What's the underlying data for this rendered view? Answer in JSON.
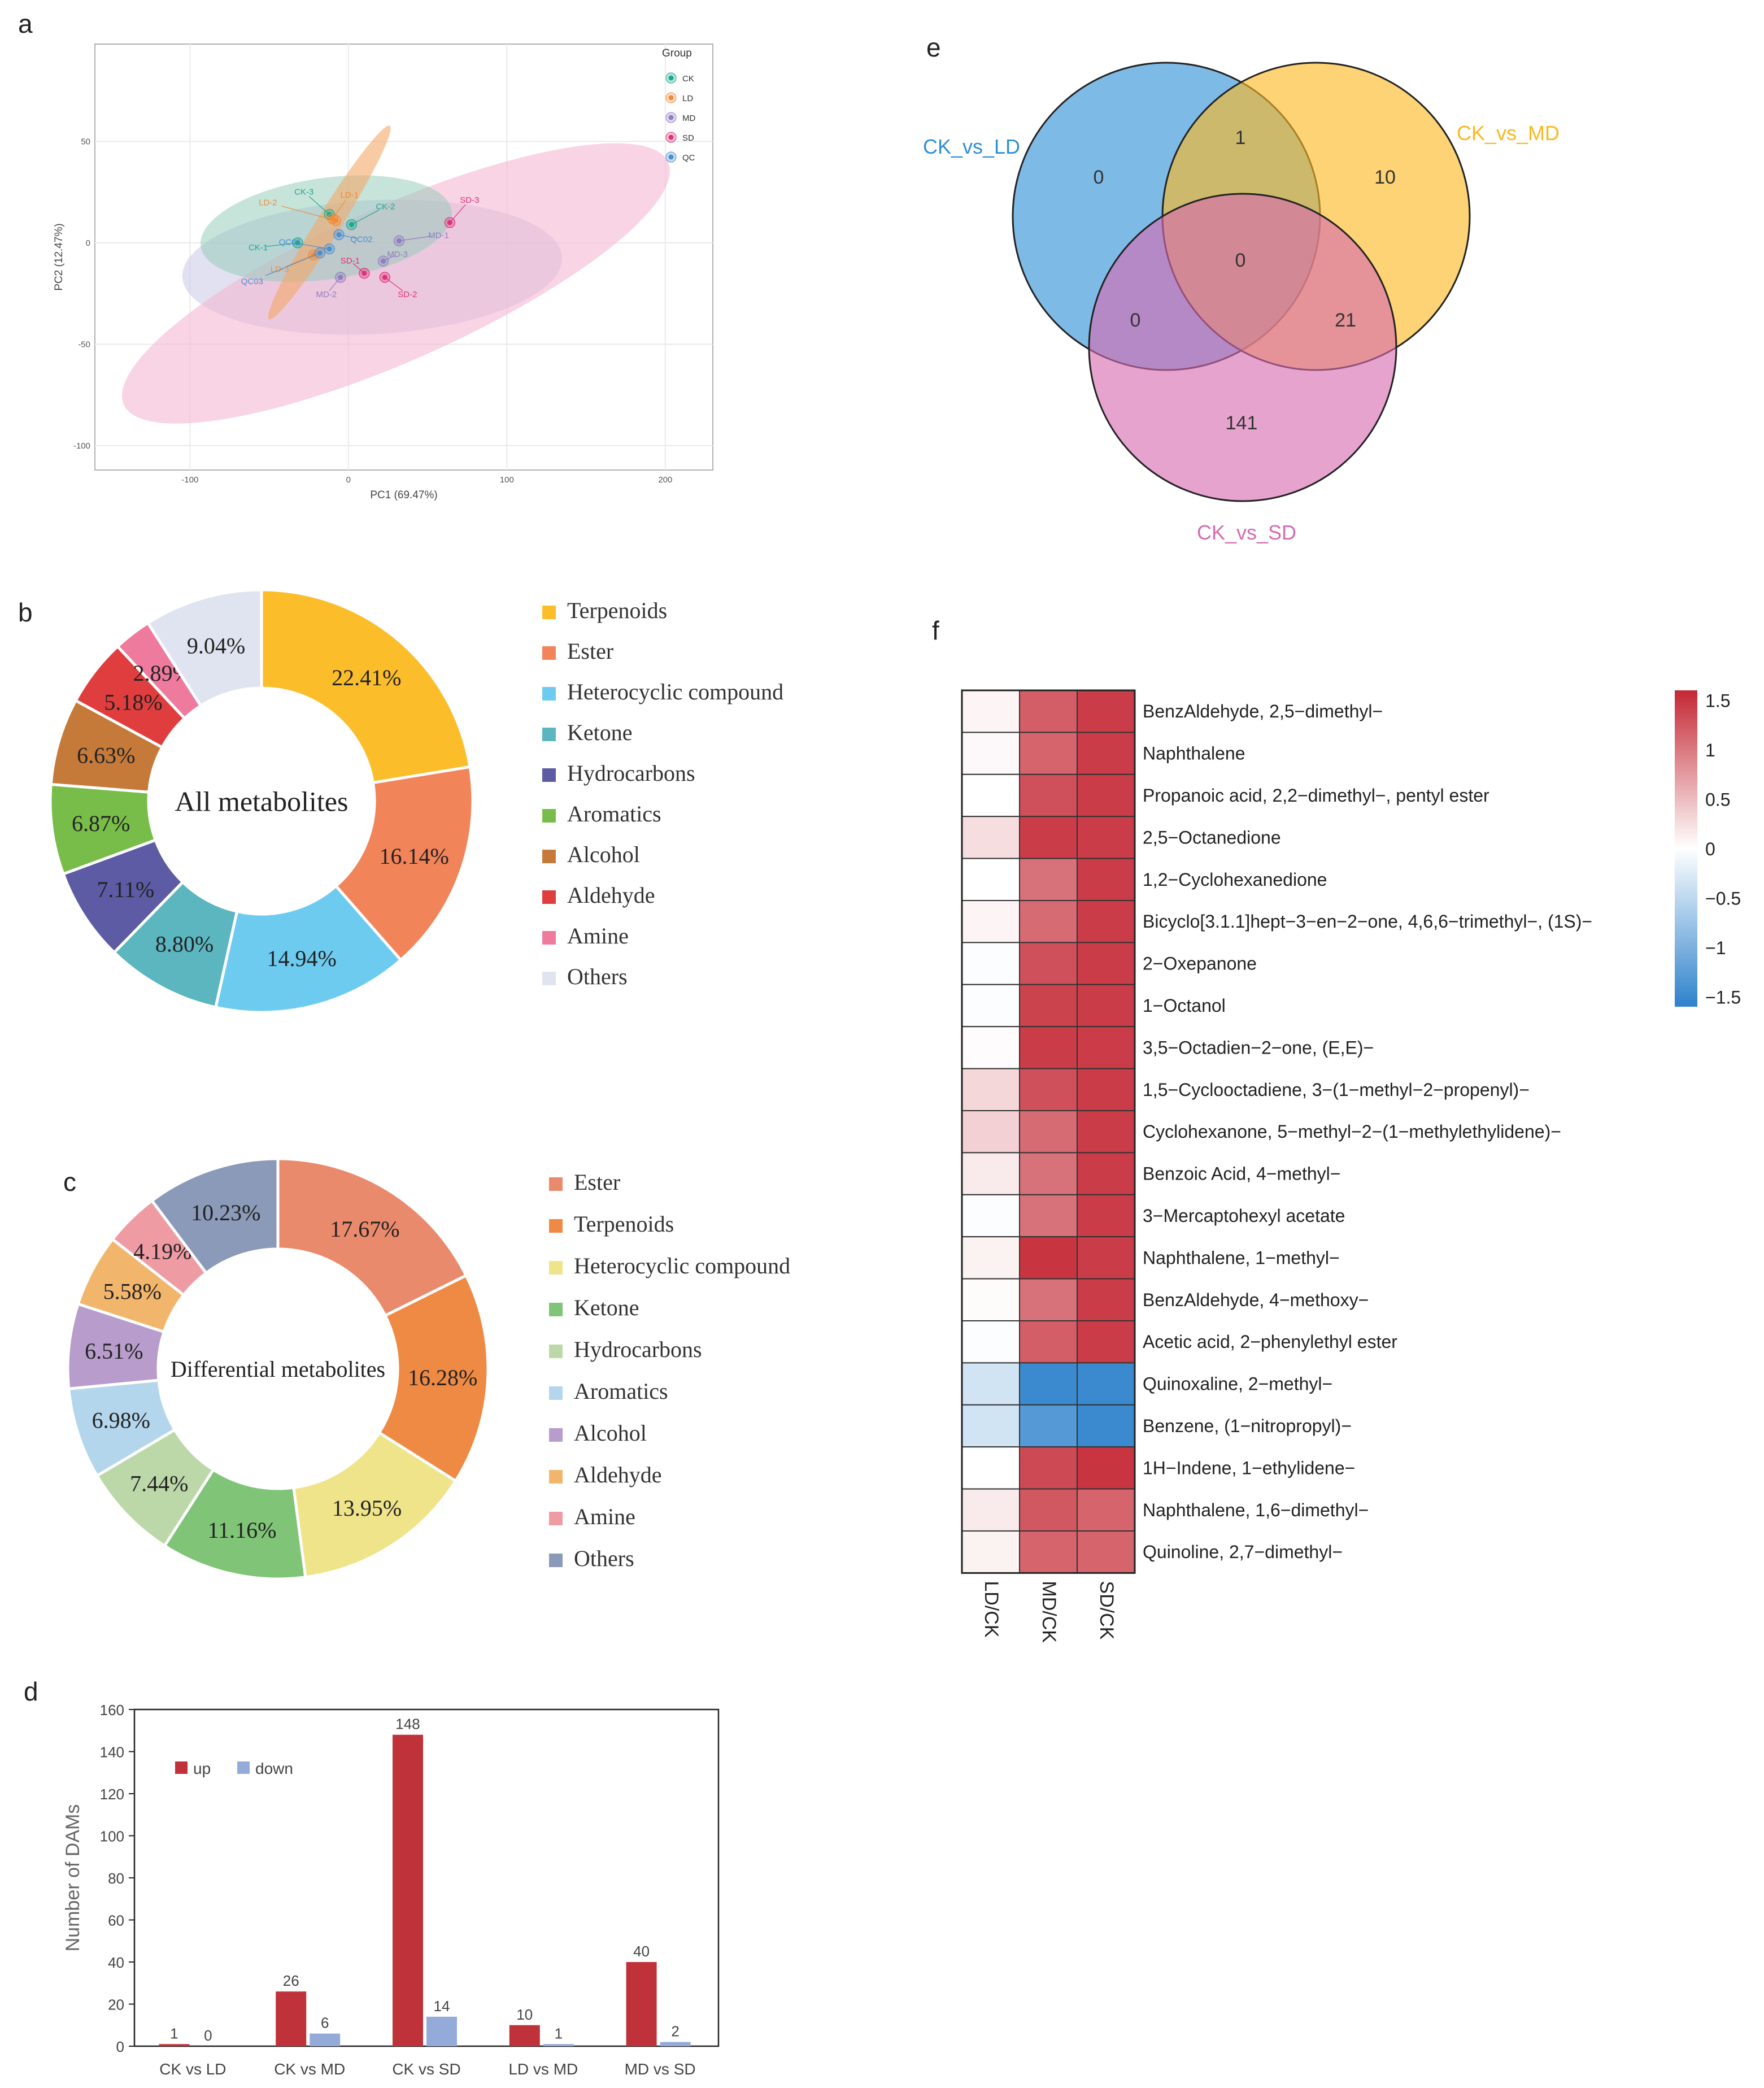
{
  "panels": {
    "a": "a",
    "b": "b",
    "c": "c",
    "d": "d",
    "e": "e",
    "f": "f"
  },
  "chart_data": [
    {
      "id": "a",
      "type": "scatter",
      "title": "",
      "xlabel": "PC1 (69.47%)",
      "ylabel": "PC2 (12.47%)",
      "xlim": [
        -160,
        230
      ],
      "ylim": [
        -112,
        98
      ],
      "xticks": [
        -100,
        0,
        100,
        200
      ],
      "yticks": [
        -100,
        -50,
        0,
        50
      ],
      "legend_title": "Group",
      "groups": [
        {
          "name": "CK",
          "color": "#1aa98f"
        },
        {
          "name": "LD",
          "color": "#f08a3a"
        },
        {
          "name": "MD",
          "color": "#8f7dc0"
        },
        {
          "name": "SD",
          "color": "#e0307a"
        },
        {
          "name": "QC",
          "color": "#4a8fd0"
        }
      ],
      "points": [
        {
          "label": "CK-1",
          "group": "CK",
          "x": -32,
          "y": 0
        },
        {
          "label": "CK-3",
          "group": "CK",
          "x": -12,
          "y": 14
        },
        {
          "label": "CK-2",
          "group": "CK",
          "x": 2,
          "y": 9
        },
        {
          "label": "LD-2",
          "group": "LD",
          "x": -8,
          "y": 11
        },
        {
          "label": "LD-1",
          "group": "LD",
          "x": -10,
          "y": 12
        },
        {
          "label": "LD-3",
          "group": "LD",
          "x": -22,
          "y": -6
        },
        {
          "label": "MD-1",
          "group": "MD",
          "x": 32,
          "y": 1
        },
        {
          "label": "MD-3",
          "group": "MD",
          "x": 22,
          "y": -9
        },
        {
          "label": "MD-2",
          "group": "MD",
          "x": -5,
          "y": -17
        },
        {
          "label": "SD-3",
          "group": "SD",
          "x": 64,
          "y": 10
        },
        {
          "label": "SD-1",
          "group": "SD",
          "x": 10,
          "y": -15
        },
        {
          "label": "SD-2",
          "group": "SD",
          "x": 23,
          "y": -17
        },
        {
          "label": "QC01",
          "group": "QC",
          "x": -12,
          "y": -3
        },
        {
          "label": "QC02",
          "group": "QC",
          "x": -6,
          "y": 4
        },
        {
          "label": "QC03",
          "group": "QC",
          "x": -18,
          "y": -5
        }
      ]
    },
    {
      "id": "b",
      "type": "pie",
      "center_label": "All metabolites",
      "categories": [
        "Terpenoids",
        "Ester",
        "Heterocyclic compound",
        "Ketone",
        "Hydrocarbons",
        "Aromatics",
        "Alcohol",
        "Aldehyde",
        "Amine",
        "Others"
      ],
      "values": [
        22.41,
        16.14,
        14.94,
        8.8,
        7.11,
        6.87,
        6.63,
        5.18,
        2.89,
        9.04
      ],
      "labels": [
        "22.41%",
        "16.14%",
        "14.94%",
        "8.80%",
        "7.11%",
        "6.87%",
        "6.63%",
        "5.18%",
        "2.89%",
        "9.04%"
      ],
      "colors": [
        "#fbbd2a",
        "#f2845a",
        "#6ecbf0",
        "#5bb6bf",
        "#5c5ba4",
        "#78bd4a",
        "#c57a3a",
        "#e03e3e",
        "#ee7a9e",
        "#e0e4f0"
      ]
    },
    {
      "id": "c",
      "type": "pie",
      "center_label": "Differential metabolites",
      "categories": [
        "Ester",
        "Terpenoids",
        "Heterocyclic compound",
        "Ketone",
        "Hydrocarbons",
        "Aromatics",
        "Alcohol",
        "Aldehyde",
        "Amine",
        "Others"
      ],
      "values": [
        17.67,
        16.28,
        13.95,
        11.16,
        7.44,
        6.98,
        6.51,
        5.58,
        4.19,
        10.23
      ],
      "labels": [
        "17.67%",
        "16.28%",
        "13.95%",
        "11.16%",
        "7.44%",
        "6.98%",
        "6.51%",
        "5.58%",
        "4.19%",
        "10.23%"
      ],
      "colors": [
        "#ea8a6c",
        "#ee8a44",
        "#efe48a",
        "#7fc477",
        "#bcd8a8",
        "#b4d6ec",
        "#b89ccc",
        "#f2b56c",
        "#ee9ba4",
        "#8a9ab8"
      ]
    },
    {
      "id": "d",
      "type": "bar",
      "ylabel": "Number of DAMs",
      "ylim": [
        0,
        160
      ],
      "yticks": [
        0,
        20,
        40,
        60,
        80,
        100,
        120,
        140,
        160
      ],
      "categories": [
        "CK vs LD",
        "CK vs MD",
        "CK vs SD",
        "LD vs MD",
        "MD vs SD"
      ],
      "series": [
        {
          "name": "up",
          "color": "#c0323a",
          "values": [
            1,
            26,
            148,
            10,
            40
          ]
        },
        {
          "name": "down",
          "color": "#94aad8",
          "values": [
            0,
            6,
            14,
            1,
            2
          ]
        }
      ]
    },
    {
      "id": "e",
      "type": "venn",
      "sets": [
        {
          "name": "CK_vs_LD",
          "color": "#2e8fd6"
        },
        {
          "name": "CK_vs_MD",
          "color": "#fbb820"
        },
        {
          "name": "CK_vs_SD",
          "color": "#d66ab0"
        }
      ],
      "regions": [
        {
          "sets": "LD",
          "value": "0"
        },
        {
          "sets": "MD",
          "value": "10"
        },
        {
          "sets": "SD",
          "value": "141"
        },
        {
          "sets": "LD&MD",
          "value": "1"
        },
        {
          "sets": "LD&SD",
          "value": "0"
        },
        {
          "sets": "MD&SD",
          "value": "21"
        },
        {
          "sets": "LD&MD&SD",
          "value": "0"
        }
      ]
    },
    {
      "id": "f",
      "type": "heatmap",
      "columns": [
        "LD/CK",
        "MD/CK",
        "SD/CK"
      ],
      "rows": [
        "BenzAldehyde, 2,5−dimethyl−",
        "Naphthalene",
        "Propanoic acid, 2,2−dimethyl−, pentyl ester",
        "2,5−Octanedione",
        "1,2−Cyclohexanedione",
        "Bicyclo[3.1.1]hept−3−en−2−one, 4,6,6−trimethyl−, (1S)−",
        "2−Oxepanone",
        "1−Octanol",
        "3,5−Octadien−2−one, (E,E)−",
        "1,5−Cyclooctadiene, 3−(1−methyl−2−propenyl)−",
        "Cyclohexanone, 5−methyl−2−(1−methylethylidene)−",
        "Benzoic Acid, 4−methyl−",
        "3−Mercaptohexyl acetate",
        "Naphthalene, 1−methyl−",
        "BenzAldehyde, 4−methoxy−",
        "Acetic acid, 2−phenylethyl ester",
        "Quinoxaline, 2−methyl−",
        "Benzene, (1−nitropropyl)−",
        "1H−Indene, 1−ethylidene−",
        "Naphthalene, 1,6−dimethyl−",
        "Quinoline, 2,7−dimethyl−"
      ],
      "values": [
        [
          0.08,
          1.2,
          1.45
        ],
        [
          0.05,
          1.15,
          1.45
        ],
        [
          0.0,
          1.3,
          1.45
        ],
        [
          0.25,
          1.45,
          1.45
        ],
        [
          0.0,
          1.05,
          1.45
        ],
        [
          0.08,
          1.1,
          1.45
        ],
        [
          -0.03,
          1.3,
          1.45
        ],
        [
          -0.02,
          1.4,
          1.45
        ],
        [
          0.02,
          1.45,
          1.45
        ],
        [
          0.3,
          1.3,
          1.45
        ],
        [
          0.35,
          1.1,
          1.45
        ],
        [
          0.15,
          1.05,
          1.45
        ],
        [
          -0.03,
          1.05,
          1.45
        ],
        [
          0.1,
          1.5,
          1.45
        ],
        [
          0.03,
          1.05,
          1.45
        ],
        [
          -0.03,
          1.2,
          1.45
        ],
        [
          -0.35,
          -1.5,
          -1.5
        ],
        [
          -0.35,
          -1.3,
          -1.5
        ],
        [
          0.0,
          1.35,
          1.5
        ],
        [
          0.15,
          1.25,
          1.15
        ],
        [
          0.1,
          1.15,
          1.15
        ]
      ],
      "colorbar": {
        "ticks": [
          "1.5",
          "1",
          "0.5",
          "0",
          "−0.5",
          "−1",
          "−1.5"
        ],
        "values": [
          1.5,
          1,
          0.5,
          0,
          -0.5,
          -1,
          -1.5
        ],
        "range": [
          -1.6,
          1.6
        ]
      }
    }
  ]
}
